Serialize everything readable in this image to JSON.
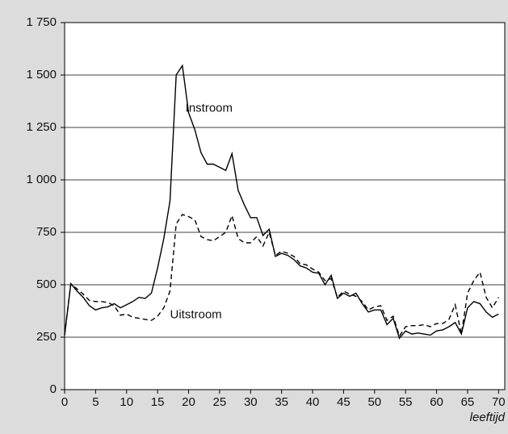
{
  "chart_data": {
    "type": "line",
    "x": [
      0,
      1,
      2,
      3,
      4,
      5,
      6,
      7,
      8,
      9,
      10,
      11,
      12,
      13,
      14,
      15,
      16,
      17,
      18,
      19,
      20,
      21,
      22,
      23,
      24,
      25,
      26,
      27,
      28,
      29,
      30,
      31,
      32,
      33,
      34,
      35,
      36,
      37,
      38,
      39,
      40,
      41,
      42,
      43,
      44,
      45,
      46,
      47,
      48,
      49,
      50,
      51,
      52,
      53,
      54,
      55,
      56,
      57,
      58,
      59,
      60,
      61,
      62,
      63,
      64,
      65,
      66,
      67,
      68,
      69,
      70
    ],
    "series": [
      {
        "name": "Instroom",
        "color": "#000000",
        "dash": "solid",
        "values": [
          260,
          505,
          470,
          440,
          400,
          380,
          390,
          395,
          410,
          390,
          405,
          420,
          440,
          435,
          460,
          580,
          720,
          900,
          1500,
          1545,
          1320,
          1240,
          1130,
          1075,
          1075,
          1060,
          1045,
          1125,
          950,
          880,
          820,
          820,
          735,
          765,
          635,
          650,
          640,
          620,
          590,
          580,
          560,
          555,
          500,
          545,
          435,
          460,
          445,
          460,
          410,
          370,
          380,
          380,
          310,
          340,
          245,
          280,
          265,
          270,
          265,
          260,
          280,
          285,
          300,
          320,
          265,
          390,
          420,
          410,
          370,
          345,
          360
        ]
      },
      {
        "name": "Uitstroom",
        "color": "#000000",
        "dash": "dashed",
        "values": [
          260,
          505,
          480,
          455,
          425,
          420,
          420,
          415,
          400,
          355,
          360,
          345,
          340,
          335,
          330,
          350,
          390,
          470,
          790,
          835,
          825,
          810,
          730,
          715,
          710,
          730,
          750,
          830,
          720,
          700,
          700,
          730,
          685,
          750,
          640,
          660,
          650,
          635,
          600,
          595,
          575,
          560,
          520,
          530,
          440,
          470,
          455,
          445,
          420,
          380,
          395,
          400,
          330,
          350,
          255,
          300,
          305,
          305,
          310,
          300,
          315,
          315,
          335,
          405,
          265,
          460,
          520,
          560,
          440,
          390,
          440
        ]
      }
    ],
    "annotations": [
      {
        "text": "Instroom",
        "x": 19.5,
        "y": 1340
      },
      {
        "text": "Uitstroom",
        "x": 17,
        "y": 355
      }
    ],
    "x_label": "leeftijd",
    "xlim": [
      0,
      71
    ],
    "xticks": [
      0,
      5,
      10,
      15,
      20,
      25,
      30,
      35,
      40,
      45,
      50,
      55,
      60,
      65,
      70
    ],
    "ylim": [
      0,
      1750
    ],
    "yticks": [
      0,
      250,
      500,
      750,
      {
        "value": 1000,
        "label": "1 000"
      },
      {
        "value": 1250,
        "label": "1 250"
      },
      {
        "value": 1500,
        "label": "1 500"
      },
      {
        "value": 1750,
        "label": "1 750"
      }
    ],
    "grid": true
  }
}
